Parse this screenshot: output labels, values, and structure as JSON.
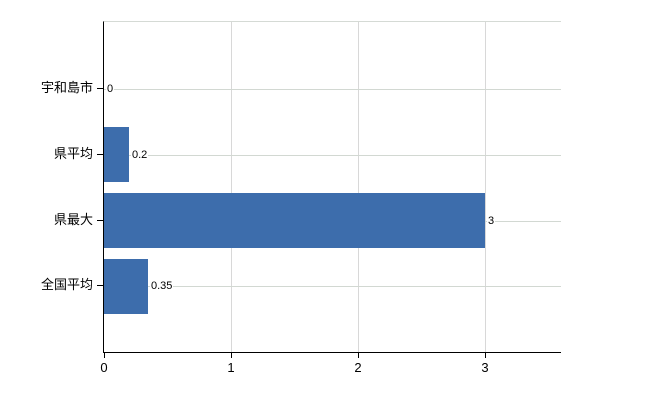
{
  "chart_data": {
    "type": "bar",
    "orientation": "horizontal",
    "title": "",
    "xlabel": "",
    "ylabel": "",
    "categories": [
      "宇和島市",
      "県平均",
      "県最大",
      "全国平均"
    ],
    "values": [
      0,
      0.2,
      3,
      0.35
    ],
    "value_labels": [
      "0",
      "0.2",
      "3",
      "0.35"
    ],
    "xlim": [
      0,
      3.6
    ],
    "x_ticks": [
      0,
      1,
      2,
      3
    ],
    "x_tick_labels": [
      "0",
      "1",
      "2",
      "3"
    ],
    "grid": true,
    "legend": false,
    "bar_color": "#3d6dac",
    "gridline_color_vertical": "#d8d8d8",
    "gridline_color_horizontal": "#d2d8d2",
    "axis_color": "#000000",
    "background_color": "#ffffff"
  }
}
